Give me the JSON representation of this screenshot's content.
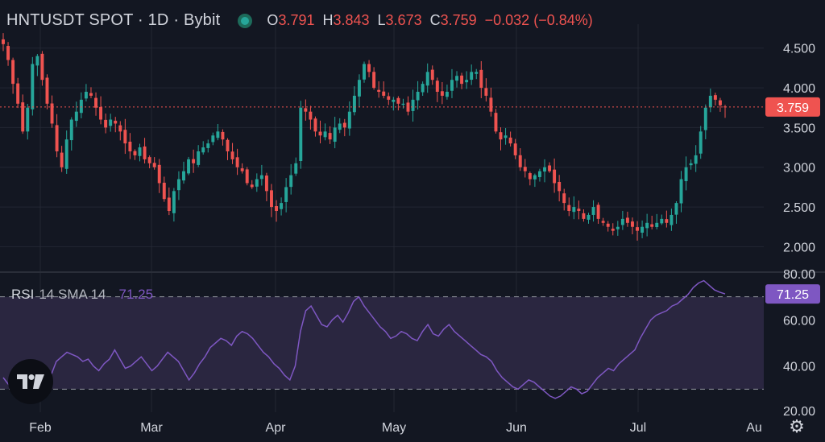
{
  "header": {
    "symbol": "HNTUSDT SPOT · 1D · Bybit",
    "status_icon": "live-dot-icon",
    "ohlc": {
      "open_label": "O",
      "open": "3.791",
      "high_label": "H",
      "high": "3.843",
      "low_label": "L",
      "low": "3.673",
      "close_label": "C",
      "close": "3.759",
      "change": "−0.032 (−0.84%)"
    }
  },
  "price_axis": {
    "ticks": [
      "4.500",
      "4.000",
      "3.500",
      "3.000",
      "2.500",
      "2.000"
    ],
    "last_price_label": "3.759"
  },
  "rsi": {
    "name": "RSI",
    "params": "14 SMA 14",
    "value": "71.25",
    "axis_ticks": [
      "80.00",
      "60.00",
      "40.00",
      "20.00"
    ]
  },
  "time_axis": {
    "labels": [
      "Feb",
      "Mar",
      "Apr",
      "May",
      "Jun",
      "Jul",
      "Au"
    ]
  },
  "logo": "tradingview-logo",
  "settings_icon": "gear-icon",
  "colors": {
    "background": "#131722",
    "up": "#26a69a",
    "down": "#ef5350",
    "rsi_line": "#7e57c2",
    "rsi_band": "#2a2640",
    "grid": "#232733",
    "text": "#d1d4dc"
  },
  "chart_data": [
    {
      "type": "candlestick",
      "title": "HNTUSDT SPOT · 1D · Bybit",
      "ylim": [
        1.7,
        4.7
      ],
      "x_labels": [
        "Feb",
        "Mar",
        "Apr",
        "May",
        "Jun",
        "Jul",
        "Au"
      ],
      "last_price": 3.759,
      "closes": [
        4.55,
        4.35,
        4.05,
        3.8,
        3.45,
        3.75,
        4.3,
        4.4,
        4.1,
        3.8,
        3.55,
        3.2,
        3.0,
        3.35,
        3.6,
        3.7,
        3.85,
        3.95,
        3.9,
        3.75,
        3.6,
        3.5,
        3.6,
        3.55,
        3.45,
        3.3,
        3.2,
        3.15,
        3.25,
        3.1,
        3.05,
        3.0,
        2.8,
        2.6,
        2.45,
        2.7,
        2.85,
        2.95,
        3.1,
        3.05,
        3.2,
        3.25,
        3.3,
        3.4,
        3.45,
        3.35,
        3.2,
        3.1,
        3.0,
        2.95,
        2.8,
        2.75,
        2.85,
        2.9,
        2.7,
        2.5,
        2.45,
        2.55,
        2.75,
        2.9,
        3.05,
        3.75,
        3.7,
        3.6,
        3.45,
        3.4,
        3.45,
        3.35,
        3.5,
        3.55,
        3.5,
        3.7,
        3.9,
        4.1,
        4.3,
        4.2,
        4.0,
        3.95,
        3.9,
        3.85,
        3.85,
        3.8,
        3.8,
        3.7,
        3.85,
        3.95,
        4.05,
        4.2,
        4.1,
        3.95,
        3.9,
        3.95,
        4.1,
        4.15,
        4.05,
        4.1,
        4.2,
        4.2,
        4.0,
        3.9,
        3.7,
        3.45,
        3.35,
        3.4,
        3.3,
        3.15,
        3.0,
        2.95,
        2.85,
        2.9,
        2.95,
        3.0,
        2.95,
        2.8,
        2.7,
        2.55,
        2.45,
        2.5,
        2.45,
        2.35,
        2.4,
        2.5,
        2.35,
        2.3,
        2.25,
        2.2,
        2.25,
        2.35,
        2.3,
        2.25,
        2.2,
        2.25,
        2.3,
        2.25,
        2.3,
        2.35,
        2.3,
        2.4,
        2.55,
        2.85,
        3.0,
        3.05,
        3.15,
        3.45,
        3.75,
        3.9,
        3.85,
        3.78,
        3.759
      ],
      "rsi": {
        "name": "RSI",
        "params": "14 SMA 14",
        "ylim": [
          20,
          80
        ],
        "bands": [
          70,
          30
        ],
        "last": 71.25,
        "values": [
          35,
          32,
          30,
          31,
          33,
          34,
          36,
          39,
          38,
          36,
          42,
          44,
          46,
          45,
          44,
          42,
          43,
          40,
          38,
          41,
          43,
          47,
          43,
          39,
          40,
          42,
          44,
          41,
          38,
          40,
          43,
          46,
          44,
          42,
          38,
          34,
          37,
          41,
          44,
          48,
          50,
          52,
          51,
          49,
          53,
          55,
          54,
          52,
          49,
          46,
          44,
          41,
          39,
          36,
          34,
          40,
          55,
          64,
          66,
          62,
          58,
          57,
          60,
          62,
          59,
          63,
          68,
          70,
          66,
          63,
          60,
          57,
          55,
          52,
          53,
          55,
          54,
          52,
          51,
          55,
          58,
          54,
          53,
          56,
          58,
          55,
          53,
          51,
          49,
          47,
          45,
          44,
          42,
          38,
          35,
          33,
          31,
          30,
          32,
          34,
          33,
          31,
          29,
          27,
          26,
          27,
          29,
          31,
          30,
          28,
          29,
          32,
          35,
          37,
          39,
          38,
          41,
          43,
          45,
          47,
          52,
          56,
          60,
          62,
          63,
          64,
          66,
          67,
          69,
          71,
          74,
          76,
          77,
          75,
          73,
          72,
          71.25
        ]
      }
    }
  ]
}
